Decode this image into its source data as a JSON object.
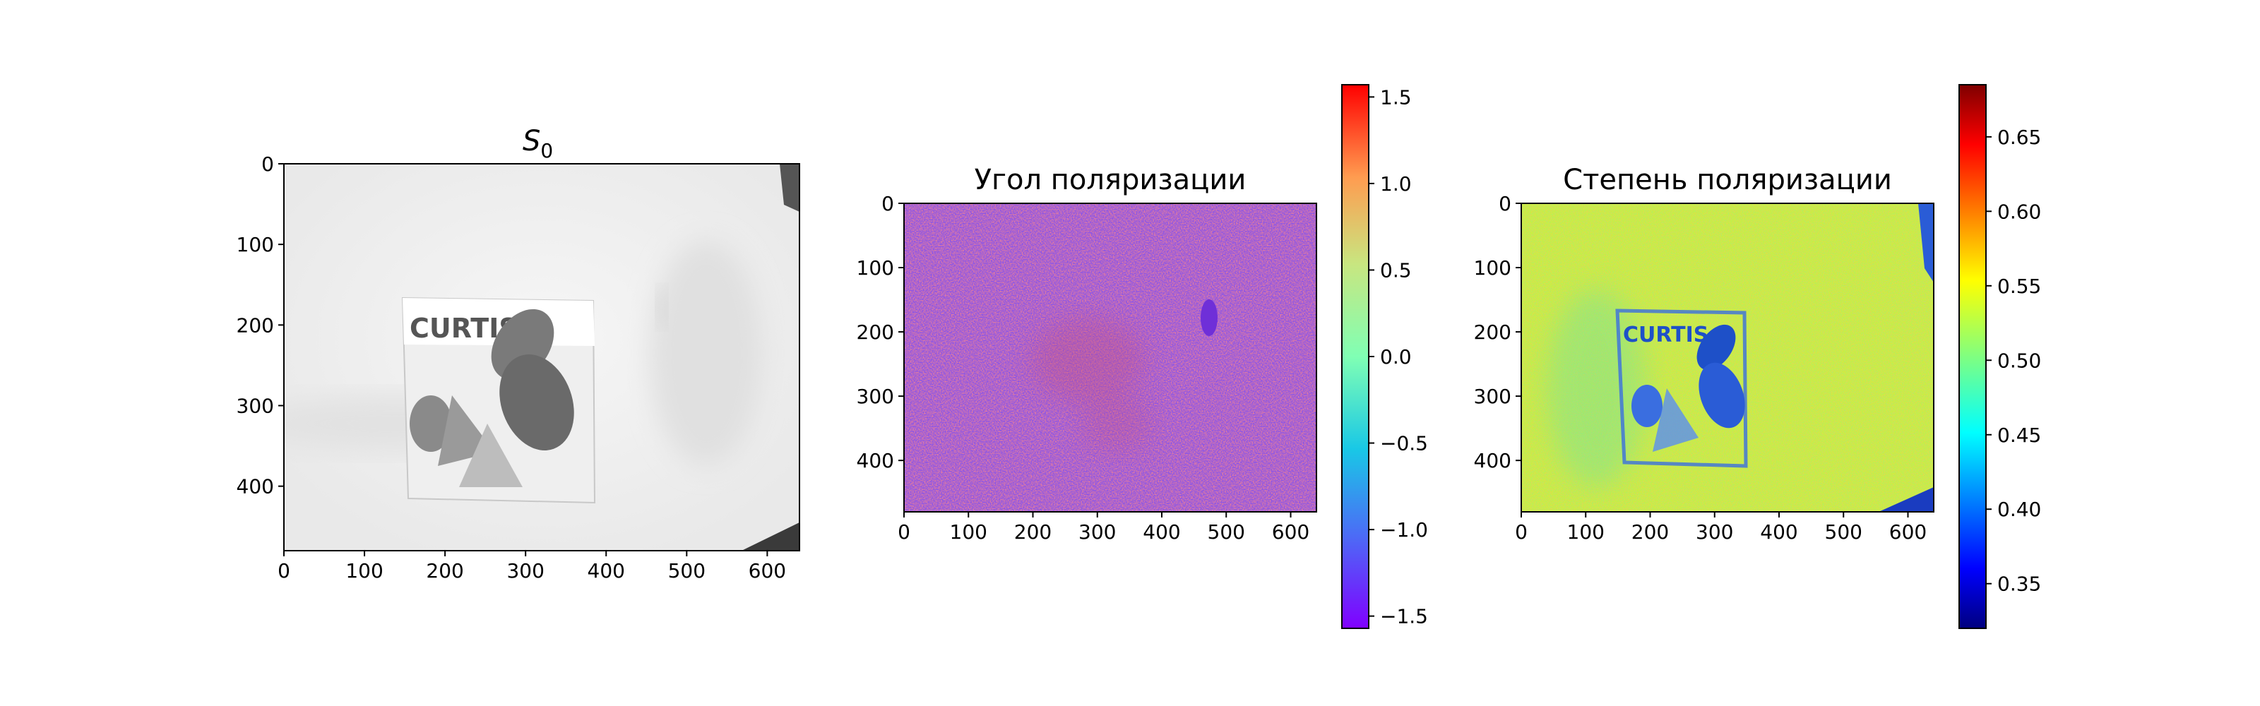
{
  "chart_data": [
    {
      "type": "heatmap",
      "title": "S",
      "title_subscript": "0",
      "colormap": "gray",
      "x": {
        "range": [
          0,
          640
        ],
        "ticks": [
          "0",
          "100",
          "200",
          "300",
          "400",
          "500",
          "600"
        ]
      },
      "y": {
        "range": [
          0,
          480
        ],
        "inverted": true,
        "ticks": [
          "0",
          "100",
          "200",
          "300",
          "400"
        ]
      },
      "image_text": "CURTIS",
      "colorbar": null
    },
    {
      "type": "heatmap",
      "title": "Угол поляризации",
      "colormap": "rainbow",
      "x": {
        "range": [
          0,
          640
        ],
        "ticks": [
          "0",
          "100",
          "200",
          "300",
          "400",
          "500",
          "600"
        ]
      },
      "y": {
        "range": [
          0,
          480
        ],
        "inverted": true,
        "ticks": [
          "0",
          "100",
          "200",
          "300",
          "400"
        ]
      },
      "colorbar": {
        "range": [
          -1.5708,
          1.5708
        ],
        "ticks": [
          "−1.5",
          "−1.0",
          "−0.5",
          "0.0",
          "0.5",
          "1.0",
          "1.5"
        ],
        "tick_values": [
          -1.5,
          -1.0,
          -0.5,
          0.0,
          0.5,
          1.0,
          1.5
        ]
      }
    },
    {
      "type": "heatmap",
      "title": "Степень поляризации",
      "colormap": "jet",
      "x": {
        "range": [
          0,
          640
        ],
        "ticks": [
          "0",
          "100",
          "200",
          "300",
          "400",
          "500",
          "600"
        ]
      },
      "y": {
        "range": [
          0,
          480
        ],
        "inverted": true,
        "ticks": [
          "0",
          "100",
          "200",
          "300",
          "400"
        ]
      },
      "image_text": "CURTIS",
      "colorbar": {
        "range": [
          0.32,
          0.685
        ],
        "ticks": [
          "0.35",
          "0.40",
          "0.45",
          "0.50",
          "0.55",
          "0.60",
          "0.65"
        ],
        "tick_values": [
          0.35,
          0.4,
          0.45,
          0.5,
          0.55,
          0.6,
          0.65
        ]
      }
    }
  ],
  "colors": {
    "s0_background": "#f0f0f0",
    "s0_box": "#e6e6e6",
    "angle_base": "#8a55e8",
    "angle_red": "#e0504a",
    "dop_base": "#c8f040",
    "dop_blue": "#2a5cd6",
    "curtis_blue": "#1e50c8",
    "text": "#000000"
  }
}
